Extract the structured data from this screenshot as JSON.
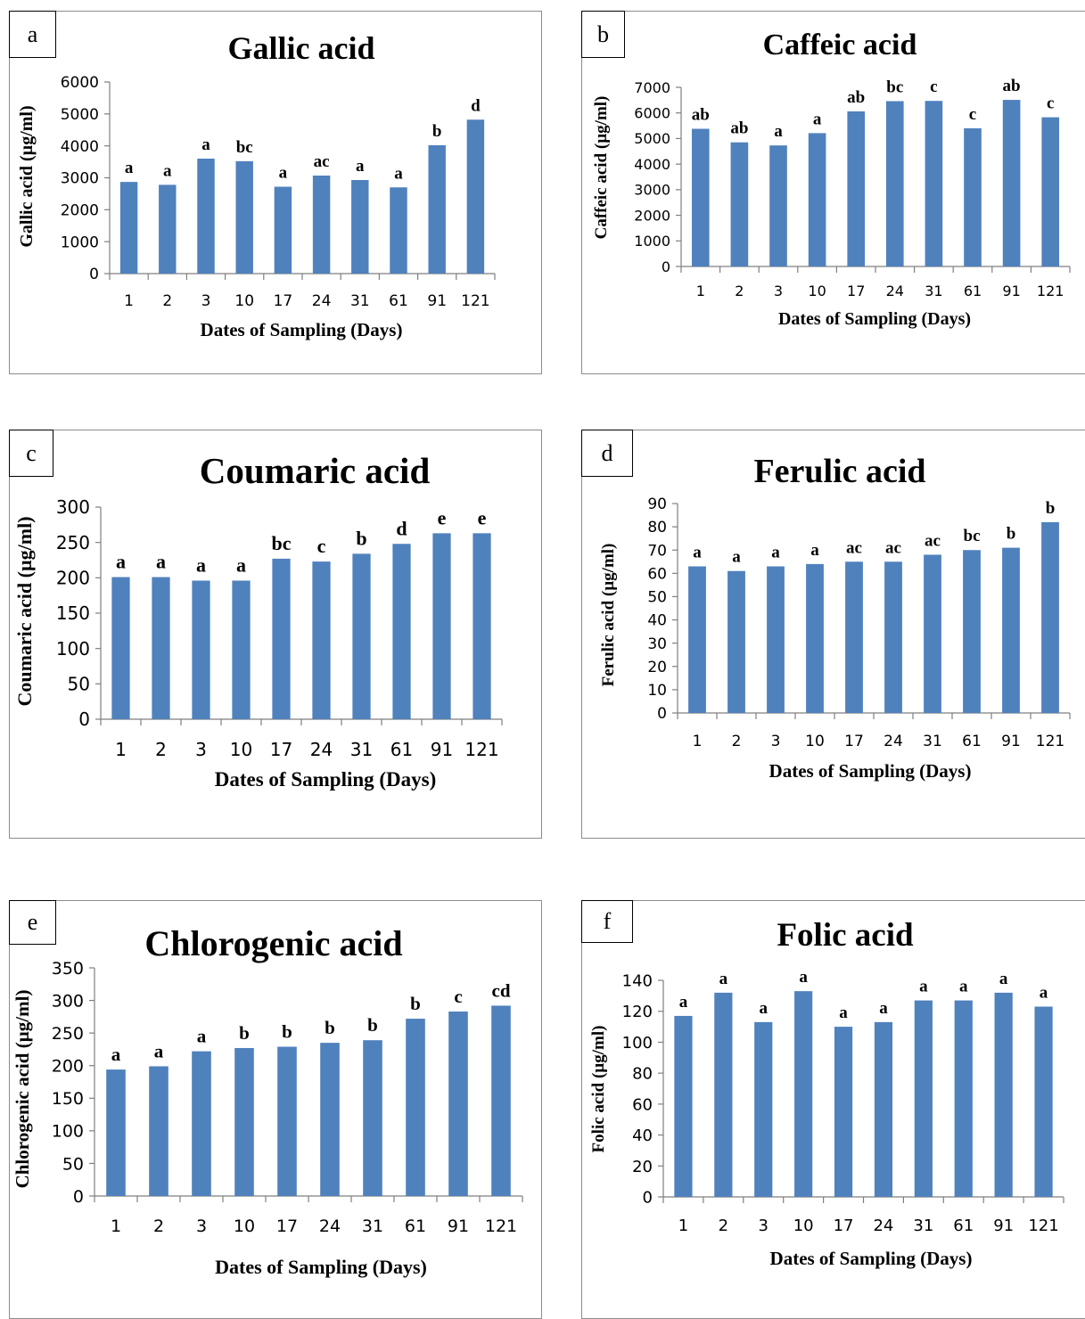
{
  "bar_color": "#4f81bd",
  "chart_data": [
    {
      "panel": "a",
      "type": "bar",
      "title": "Gallic acid",
      "xlabel": "Dates of Sampling (Days)",
      "ylabel": "Gallic acid (µg/ml)",
      "ylim": [
        0,
        6000
      ],
      "yticks": [
        0,
        1000,
        2000,
        3000,
        4000,
        5000,
        6000
      ],
      "categories": [
        "1",
        "2",
        "3",
        "10",
        "17",
        "24",
        "31",
        "61",
        "91",
        "121"
      ],
      "values": [
        2870,
        2780,
        3600,
        3520,
        2720,
        3070,
        2930,
        2700,
        4020,
        4820
      ],
      "labels": [
        "a",
        "a",
        "a",
        "bc",
        "a",
        "ac",
        "a",
        "a",
        "b",
        "d"
      ]
    },
    {
      "panel": "b",
      "type": "bar",
      "title": "Caffeic acid",
      "xlabel": "Dates of Sampling (Days)",
      "ylabel": "Caffeic acid (µg/ml)",
      "ylim": [
        0,
        7000
      ],
      "yticks": [
        0,
        1000,
        2000,
        3000,
        4000,
        5000,
        6000,
        7000
      ],
      "categories": [
        "1",
        "2",
        "3",
        "10",
        "17",
        "24",
        "31",
        "61",
        "91",
        "121"
      ],
      "values": [
        5380,
        4850,
        4730,
        5210,
        6060,
        6460,
        6470,
        5400,
        6510,
        5830
      ],
      "labels": [
        "ab",
        "ab",
        "a",
        "a",
        "ab",
        "bc",
        "c",
        "c",
        "ab",
        "c"
      ]
    },
    {
      "panel": "c",
      "type": "bar",
      "title": "Coumaric acid",
      "xlabel": "Dates of Sampling (Days)",
      "ylabel": "Coumaric acid (µg/ml)",
      "ylim": [
        0,
        300
      ],
      "yticks": [
        0,
        50,
        100,
        150,
        200,
        250,
        300
      ],
      "categories": [
        "1",
        "2",
        "3",
        "10",
        "17",
        "24",
        "31",
        "61",
        "91",
        "121"
      ],
      "values": [
        201,
        201,
        196,
        196,
        227,
        223,
        234,
        248,
        263,
        263
      ],
      "labels": [
        "a",
        "a",
        "a",
        "a",
        "bc",
        "c",
        "b",
        "d",
        "e",
        "e"
      ]
    },
    {
      "panel": "d",
      "type": "bar",
      "title": "Ferulic acid",
      "xlabel": "Dates of Sampling (Days)",
      "ylabel": "Ferulic acid (µg/ml)",
      "ylim": [
        0,
        90
      ],
      "yticks": [
        0,
        10,
        20,
        30,
        40,
        50,
        60,
        70,
        80,
        90
      ],
      "categories": [
        "1",
        "2",
        "3",
        "10",
        "17",
        "24",
        "31",
        "61",
        "91",
        "121"
      ],
      "values": [
        63,
        61,
        63,
        64,
        65,
        65,
        68,
        70,
        71,
        82
      ],
      "labels": [
        "a",
        "a",
        "a",
        "a",
        "ac",
        "ac",
        "ac",
        "bc",
        "b",
        "b"
      ]
    },
    {
      "panel": "e",
      "type": "bar",
      "title": "Chlorogenic acid",
      "xlabel": "Dates of Sampling (Days)",
      "ylabel": "Chlorogenic acid (µg/ml)",
      "ylim": [
        0,
        350
      ],
      "yticks": [
        0,
        50,
        100,
        150,
        200,
        250,
        300,
        350
      ],
      "categories": [
        "1",
        "2",
        "3",
        "10",
        "17",
        "24",
        "31",
        "61",
        "91",
        "121"
      ],
      "values": [
        194,
        199,
        222,
        227,
        229,
        235,
        239,
        272,
        283,
        292
      ],
      "labels": [
        "a",
        "a",
        "a",
        "b",
        "b",
        "b",
        "b",
        "b",
        "c",
        "cd"
      ]
    },
    {
      "panel": "f",
      "type": "bar",
      "title": "Folic acid",
      "xlabel": "Dates of Sampling (Days)",
      "ylabel": "Folic acid (µg/ml)",
      "ylim": [
        0,
        140
      ],
      "yticks": [
        0,
        20,
        40,
        60,
        80,
        100,
        120,
        140
      ],
      "categories": [
        "1",
        "2",
        "3",
        "10",
        "17",
        "24",
        "31",
        "61",
        "91",
        "121"
      ],
      "values": [
        117,
        132,
        113,
        133,
        110,
        113,
        127,
        127,
        132,
        123
      ],
      "labels": [
        "a",
        "a",
        "a",
        "a",
        "a",
        "a",
        "a",
        "a",
        "a",
        "a"
      ]
    }
  ]
}
